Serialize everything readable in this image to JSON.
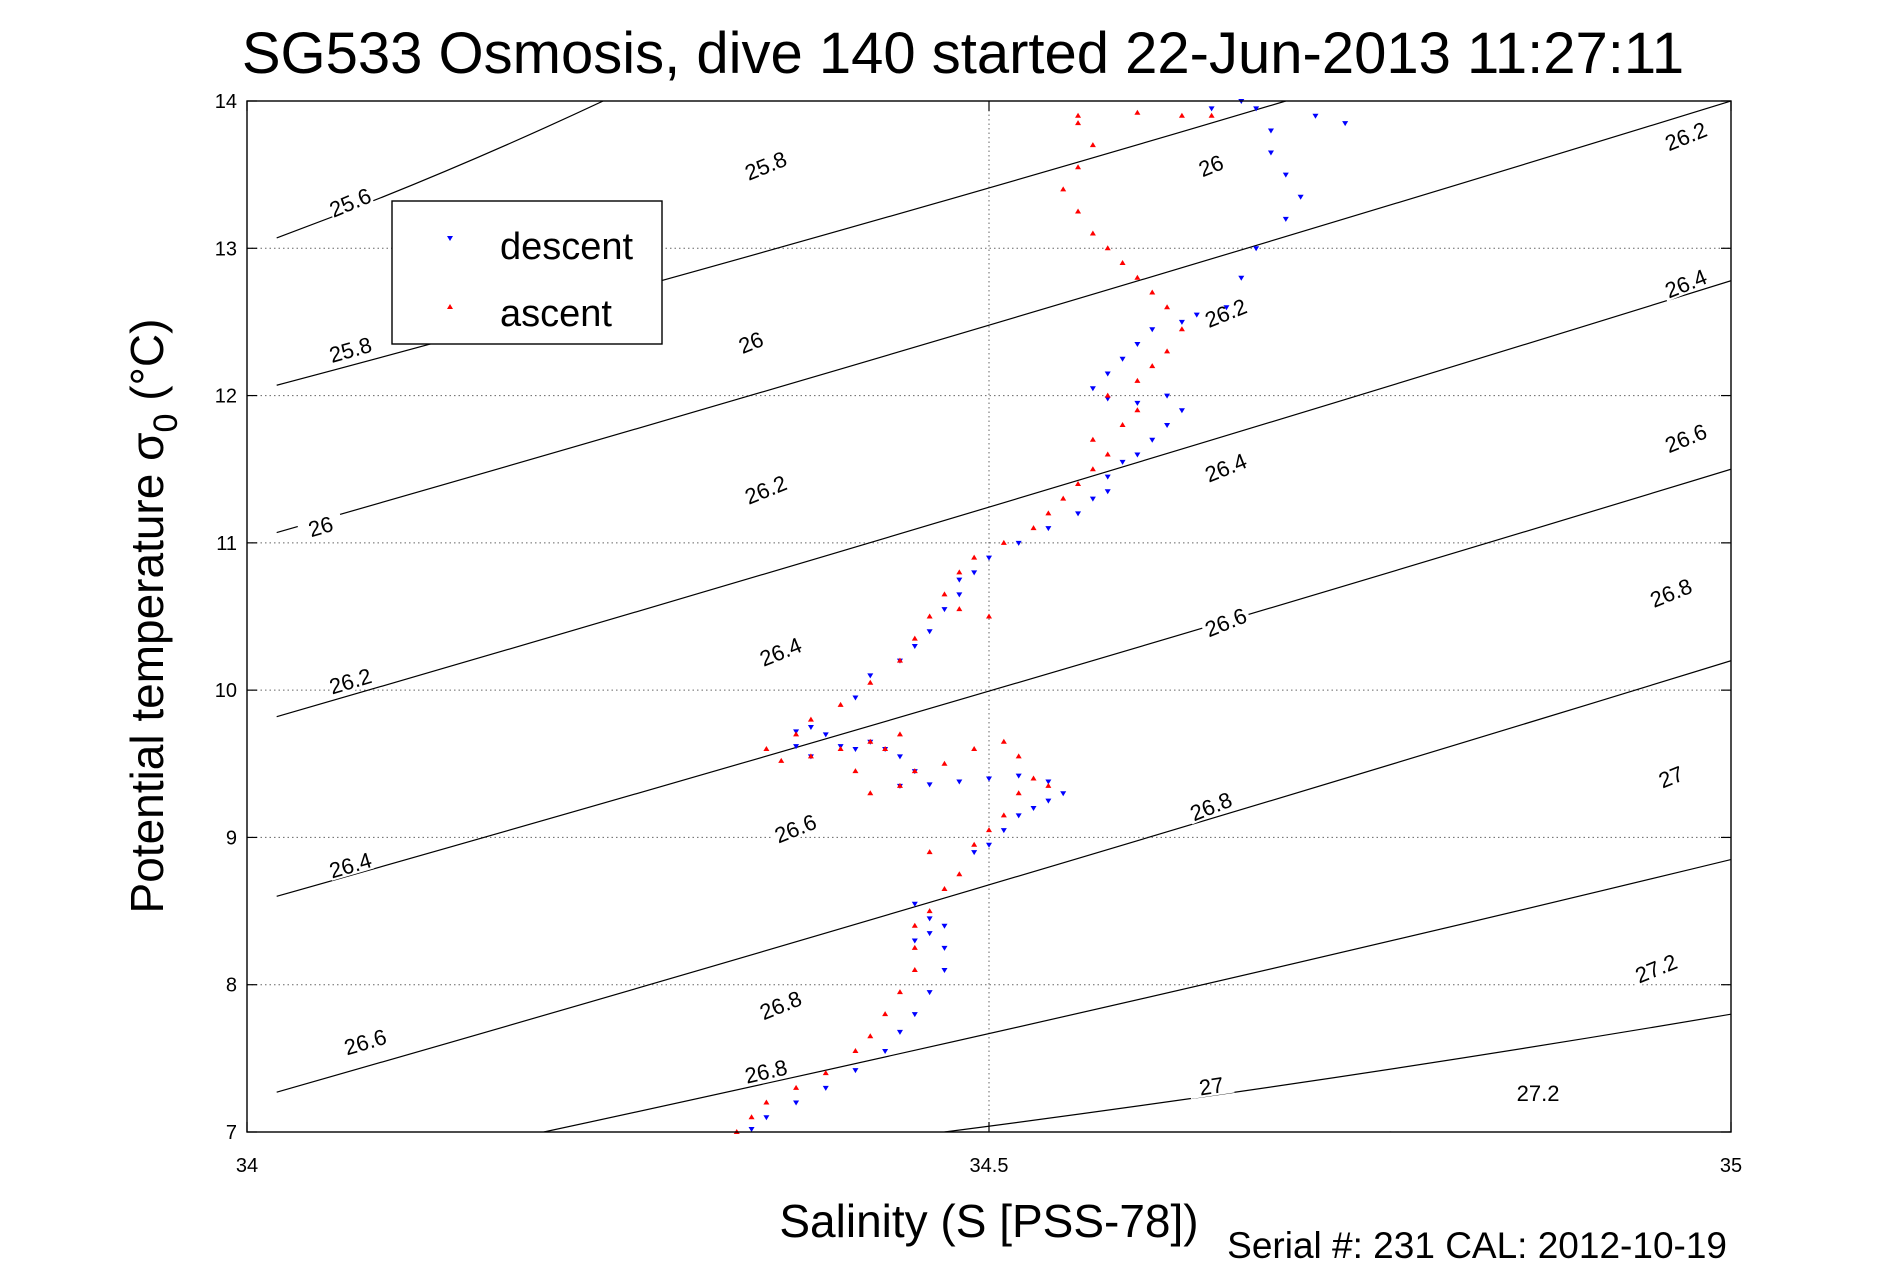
{
  "chart_data": {
    "type": "scatter",
    "title": "SG533 Osmosis, dive 140 started 22-Jun-2013 11:27:11",
    "xlabel": "Salinity (S [PSS-78])",
    "ylabel_main": "Potential temperature σ",
    "ylabel_sub": "0",
    "ylabel_unit": " (°C)",
    "footer": "Serial #: 231  CAL: 2012-10-19",
    "xlim": [
      34,
      35
    ],
    "ylim": [
      7,
      14
    ],
    "x_ticks": [
      "34",
      "34.5",
      "35"
    ],
    "y_ticks": [
      "7",
      "8",
      "9",
      "10",
      "11",
      "12",
      "13",
      "14"
    ],
    "grid": true,
    "legend_position": "top-left",
    "legend": [
      {
        "name": "descent",
        "color": "#0000ff",
        "marker": "triangle-down"
      },
      {
        "name": "ascent",
        "color": "#ff0000",
        "marker": "triangle-up"
      }
    ],
    "density_contours": {
      "levels": [
        "25.6",
        "25.8",
        "26",
        "26.2",
        "26.4",
        "26.6",
        "26.8",
        "27",
        "27.2"
      ],
      "line_labels": [
        {
          "s": 34.02,
          "t": 13.07,
          "s2": 34.24,
          "t2": 14.0,
          "label": "25.6",
          "ls": 34.07,
          "lt": 13.3
        },
        {
          "s": 34.02,
          "t": 12.07,
          "s2": 34.7,
          "t2": 14.0,
          "label": "25.8",
          "ls": 34.07,
          "lt": 12.3
        },
        {
          "s": 34.02,
          "t": 11.07,
          "s2": 35.0,
          "t2": 14.0,
          "label": "26",
          "ls": 34.05,
          "lt": 11.1
        },
        {
          "s": 34.02,
          "t": 9.82,
          "s2": 35.0,
          "t2": 12.78,
          "label": "26.2",
          "ls": 34.07,
          "lt": 10.05
        },
        {
          "s": 34.02,
          "t": 8.6,
          "s2": 35.0,
          "t2": 11.5,
          "label": "26.4",
          "ls": 34.07,
          "lt": 8.8
        },
        {
          "s": 34.02,
          "t": 7.27,
          "s2": 35.0,
          "t2": 10.2,
          "label": "26.6",
          "ls": 34.08,
          "lt": 7.6
        },
        {
          "s": 34.2,
          "t": 7.0,
          "s2": 35.0,
          "t2": 8.85,
          "label": "26.8",
          "ls": 34.35,
          "lt": 7.4
        },
        {
          "s": 34.47,
          "t": 7.0,
          "s2": 35.0,
          "t2": 7.8,
          "label": "27",
          "ls": 34.65,
          "lt": 7.3
        },
        {
          "s": 34.77,
          "t": 7.0,
          "s2": 35.0,
          "t2": 7.0,
          "label": "27.2",
          "ls": 34.87,
          "lt": 7.25
        }
      ],
      "extra_labels": [
        {
          "label": "25.8",
          "ls": 34.35,
          "lt": 13.55
        },
        {
          "label": "26",
          "ls": 34.34,
          "lt": 12.35
        },
        {
          "label": "26.2",
          "ls": 34.35,
          "lt": 11.35
        },
        {
          "label": "26.4",
          "ls": 34.36,
          "lt": 10.25
        },
        {
          "label": "26.6",
          "ls": 34.37,
          "lt": 9.05
        },
        {
          "label": "26.8",
          "ls": 34.36,
          "lt": 7.85
        },
        {
          "label": "26",
          "ls": 34.65,
          "lt": 13.55
        },
        {
          "label": "26.2",
          "ls": 34.66,
          "lt": 12.55
        },
        {
          "label": "26.4",
          "ls": 34.66,
          "lt": 11.5
        },
        {
          "label": "26.6",
          "ls": 34.66,
          "lt": 10.45
        },
        {
          "label": "26.8",
          "ls": 34.65,
          "lt": 9.2
        },
        {
          "label": "26.2",
          "ls": 34.97,
          "lt": 13.75
        },
        {
          "label": "26.4",
          "ls": 34.97,
          "lt": 12.75
        },
        {
          "label": "26.6",
          "ls": 34.97,
          "lt": 11.7
        },
        {
          "label": "26.8",
          "ls": 34.96,
          "lt": 10.65
        },
        {
          "label": "27",
          "ls": 34.96,
          "lt": 9.4
        },
        {
          "label": "27.2",
          "ls": 34.95,
          "lt": 8.1
        }
      ]
    },
    "series": [
      {
        "name": "descent",
        "color": "#0000ff",
        "points": [
          [
            34.34,
            7.02
          ],
          [
            34.35,
            7.1
          ],
          [
            34.37,
            7.2
          ],
          [
            34.39,
            7.3
          ],
          [
            34.41,
            7.42
          ],
          [
            34.43,
            7.55
          ],
          [
            34.44,
            7.68
          ],
          [
            34.45,
            7.8
          ],
          [
            34.46,
            7.95
          ],
          [
            34.47,
            8.1
          ],
          [
            34.47,
            8.25
          ],
          [
            34.46,
            8.35
          ],
          [
            34.46,
            8.45
          ],
          [
            34.45,
            8.55
          ],
          [
            34.47,
            8.4
          ],
          [
            34.45,
            8.3
          ],
          [
            34.49,
            8.9
          ],
          [
            34.5,
            8.95
          ],
          [
            34.51,
            9.05
          ],
          [
            34.52,
            9.15
          ],
          [
            34.53,
            9.2
          ],
          [
            34.54,
            9.25
          ],
          [
            34.55,
            9.3
          ],
          [
            34.54,
            9.38
          ],
          [
            34.52,
            9.42
          ],
          [
            34.5,
            9.4
          ],
          [
            34.48,
            9.38
          ],
          [
            34.46,
            9.36
          ],
          [
            34.44,
            9.35
          ],
          [
            34.45,
            9.45
          ],
          [
            34.44,
            9.55
          ],
          [
            34.43,
            9.6
          ],
          [
            34.42,
            9.65
          ],
          [
            34.41,
            9.6
          ],
          [
            34.4,
            9.62
          ],
          [
            34.39,
            9.7
          ],
          [
            34.38,
            9.75
          ],
          [
            34.37,
            9.72
          ],
          [
            34.37,
            9.62
          ],
          [
            34.38,
            9.55
          ],
          [
            34.41,
            9.95
          ],
          [
            34.42,
            10.1
          ],
          [
            34.44,
            10.2
          ],
          [
            34.45,
            10.3
          ],
          [
            34.46,
            10.4
          ],
          [
            34.47,
            10.55
          ],
          [
            34.48,
            10.65
          ],
          [
            34.48,
            10.75
          ],
          [
            34.49,
            10.8
          ],
          [
            34.5,
            10.9
          ],
          [
            34.52,
            11.0
          ],
          [
            34.54,
            11.1
          ],
          [
            34.56,
            11.2
          ],
          [
            34.57,
            11.3
          ],
          [
            34.58,
            11.35
          ],
          [
            34.58,
            11.45
          ],
          [
            34.59,
            11.55
          ],
          [
            34.6,
            11.6
          ],
          [
            34.61,
            11.7
          ],
          [
            34.62,
            11.8
          ],
          [
            34.63,
            11.9
          ],
          [
            34.62,
            12.0
          ],
          [
            34.6,
            11.95
          ],
          [
            34.58,
            11.98
          ],
          [
            34.57,
            12.05
          ],
          [
            34.58,
            12.15
          ],
          [
            34.59,
            12.25
          ],
          [
            34.6,
            12.35
          ],
          [
            34.61,
            12.45
          ],
          [
            34.63,
            12.5
          ],
          [
            34.64,
            12.55
          ],
          [
            34.66,
            12.6
          ],
          [
            34.67,
            12.8
          ],
          [
            34.68,
            13.0
          ],
          [
            34.7,
            13.2
          ],
          [
            34.71,
            13.35
          ],
          [
            34.7,
            13.5
          ],
          [
            34.69,
            13.65
          ],
          [
            34.69,
            13.8
          ],
          [
            34.68,
            13.95
          ],
          [
            34.67,
            14.0
          ],
          [
            34.72,
            13.9
          ],
          [
            34.74,
            13.85
          ],
          [
            34.65,
            13.95
          ]
        ]
      },
      {
        "name": "ascent",
        "color": "#ff0000",
        "points": [
          [
            34.33,
            7.0
          ],
          [
            34.34,
            7.1
          ],
          [
            34.35,
            7.2
          ],
          [
            34.37,
            7.3
          ],
          [
            34.39,
            7.4
          ],
          [
            34.41,
            7.55
          ],
          [
            34.42,
            7.65
          ],
          [
            34.43,
            7.8
          ],
          [
            34.44,
            7.95
          ],
          [
            34.45,
            8.1
          ],
          [
            34.45,
            8.25
          ],
          [
            34.45,
            8.4
          ],
          [
            34.46,
            8.5
          ],
          [
            34.47,
            8.65
          ],
          [
            34.48,
            8.75
          ],
          [
            34.46,
            8.9
          ],
          [
            34.49,
            8.95
          ],
          [
            34.5,
            9.05
          ],
          [
            34.51,
            9.15
          ],
          [
            34.52,
            9.3
          ],
          [
            34.53,
            9.4
          ],
          [
            34.54,
            9.35
          ],
          [
            34.52,
            9.55
          ],
          [
            34.51,
            9.65
          ],
          [
            34.49,
            9.6
          ],
          [
            34.47,
            9.5
          ],
          [
            34.45,
            9.45
          ],
          [
            34.44,
            9.35
          ],
          [
            34.42,
            9.3
          ],
          [
            34.41,
            9.45
          ],
          [
            34.43,
            9.6
          ],
          [
            34.44,
            9.7
          ],
          [
            34.42,
            9.65
          ],
          [
            34.4,
            9.6
          ],
          [
            34.38,
            9.55
          ],
          [
            34.36,
            9.52
          ],
          [
            34.35,
            9.6
          ],
          [
            34.37,
            9.7
          ],
          [
            34.38,
            9.8
          ],
          [
            34.4,
            9.9
          ],
          [
            34.42,
            10.05
          ],
          [
            34.44,
            10.2
          ],
          [
            34.45,
            10.35
          ],
          [
            34.46,
            10.5
          ],
          [
            34.48,
            10.55
          ],
          [
            34.5,
            10.5
          ],
          [
            34.47,
            10.65
          ],
          [
            34.48,
            10.8
          ],
          [
            34.49,
            10.9
          ],
          [
            34.51,
            11.0
          ],
          [
            34.53,
            11.1
          ],
          [
            34.54,
            11.2
          ],
          [
            34.55,
            11.3
          ],
          [
            34.56,
            11.4
          ],
          [
            34.57,
            11.5
          ],
          [
            34.58,
            11.6
          ],
          [
            34.57,
            11.7
          ],
          [
            34.59,
            11.8
          ],
          [
            34.6,
            11.9
          ],
          [
            34.58,
            12.0
          ],
          [
            34.6,
            12.1
          ],
          [
            34.61,
            12.2
          ],
          [
            34.62,
            12.3
          ],
          [
            34.63,
            12.45
          ],
          [
            34.62,
            12.6
          ],
          [
            34.61,
            12.7
          ],
          [
            34.6,
            12.8
          ],
          [
            34.59,
            12.9
          ],
          [
            34.58,
            13.0
          ],
          [
            34.57,
            13.1
          ],
          [
            34.56,
            13.25
          ],
          [
            34.55,
            13.4
          ],
          [
            34.56,
            13.55
          ],
          [
            34.57,
            13.7
          ],
          [
            34.56,
            13.9
          ],
          [
            34.6,
            13.92
          ],
          [
            34.63,
            13.9
          ],
          [
            34.65,
            13.9
          ],
          [
            34.56,
            13.85
          ]
        ]
      }
    ]
  }
}
